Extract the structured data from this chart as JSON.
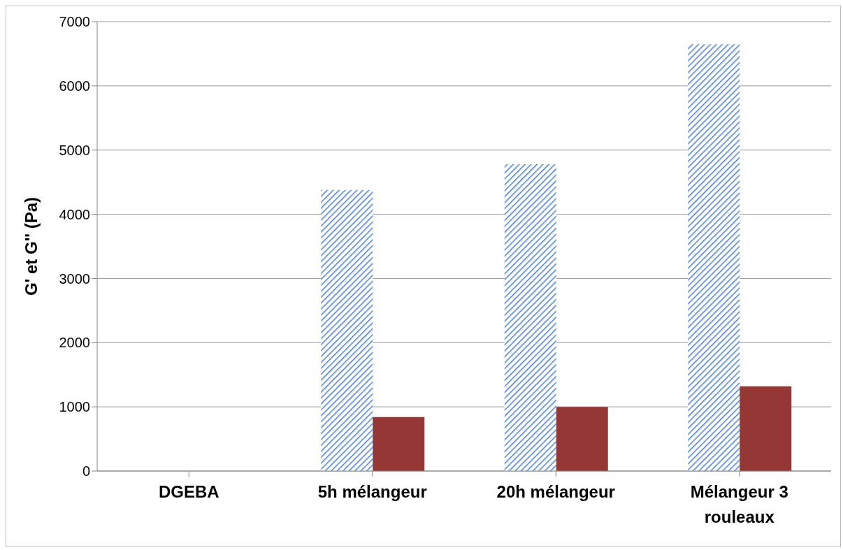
{
  "chart_data": {
    "type": "bar",
    "ylabel": "G' et G'' (Pa)",
    "categories": [
      "DGEBA",
      "5h mélangeur",
      "20h mélangeur",
      "Mélangeur 3 rouleaux"
    ],
    "series": [
      {
        "color": "#4a7fd0",
        "values": [
          0,
          4380,
          4780,
          6650
        ]
      },
      {
        "color": "#953735",
        "values": [
          null,
          840,
          1000,
          1320
        ]
      }
    ],
    "ylim": [
      0,
      7000
    ],
    "yticks": [
      0,
      1000,
      2000,
      3000,
      4000,
      5000,
      6000,
      7000
    ],
    "grid": "y",
    "legend": false
  }
}
